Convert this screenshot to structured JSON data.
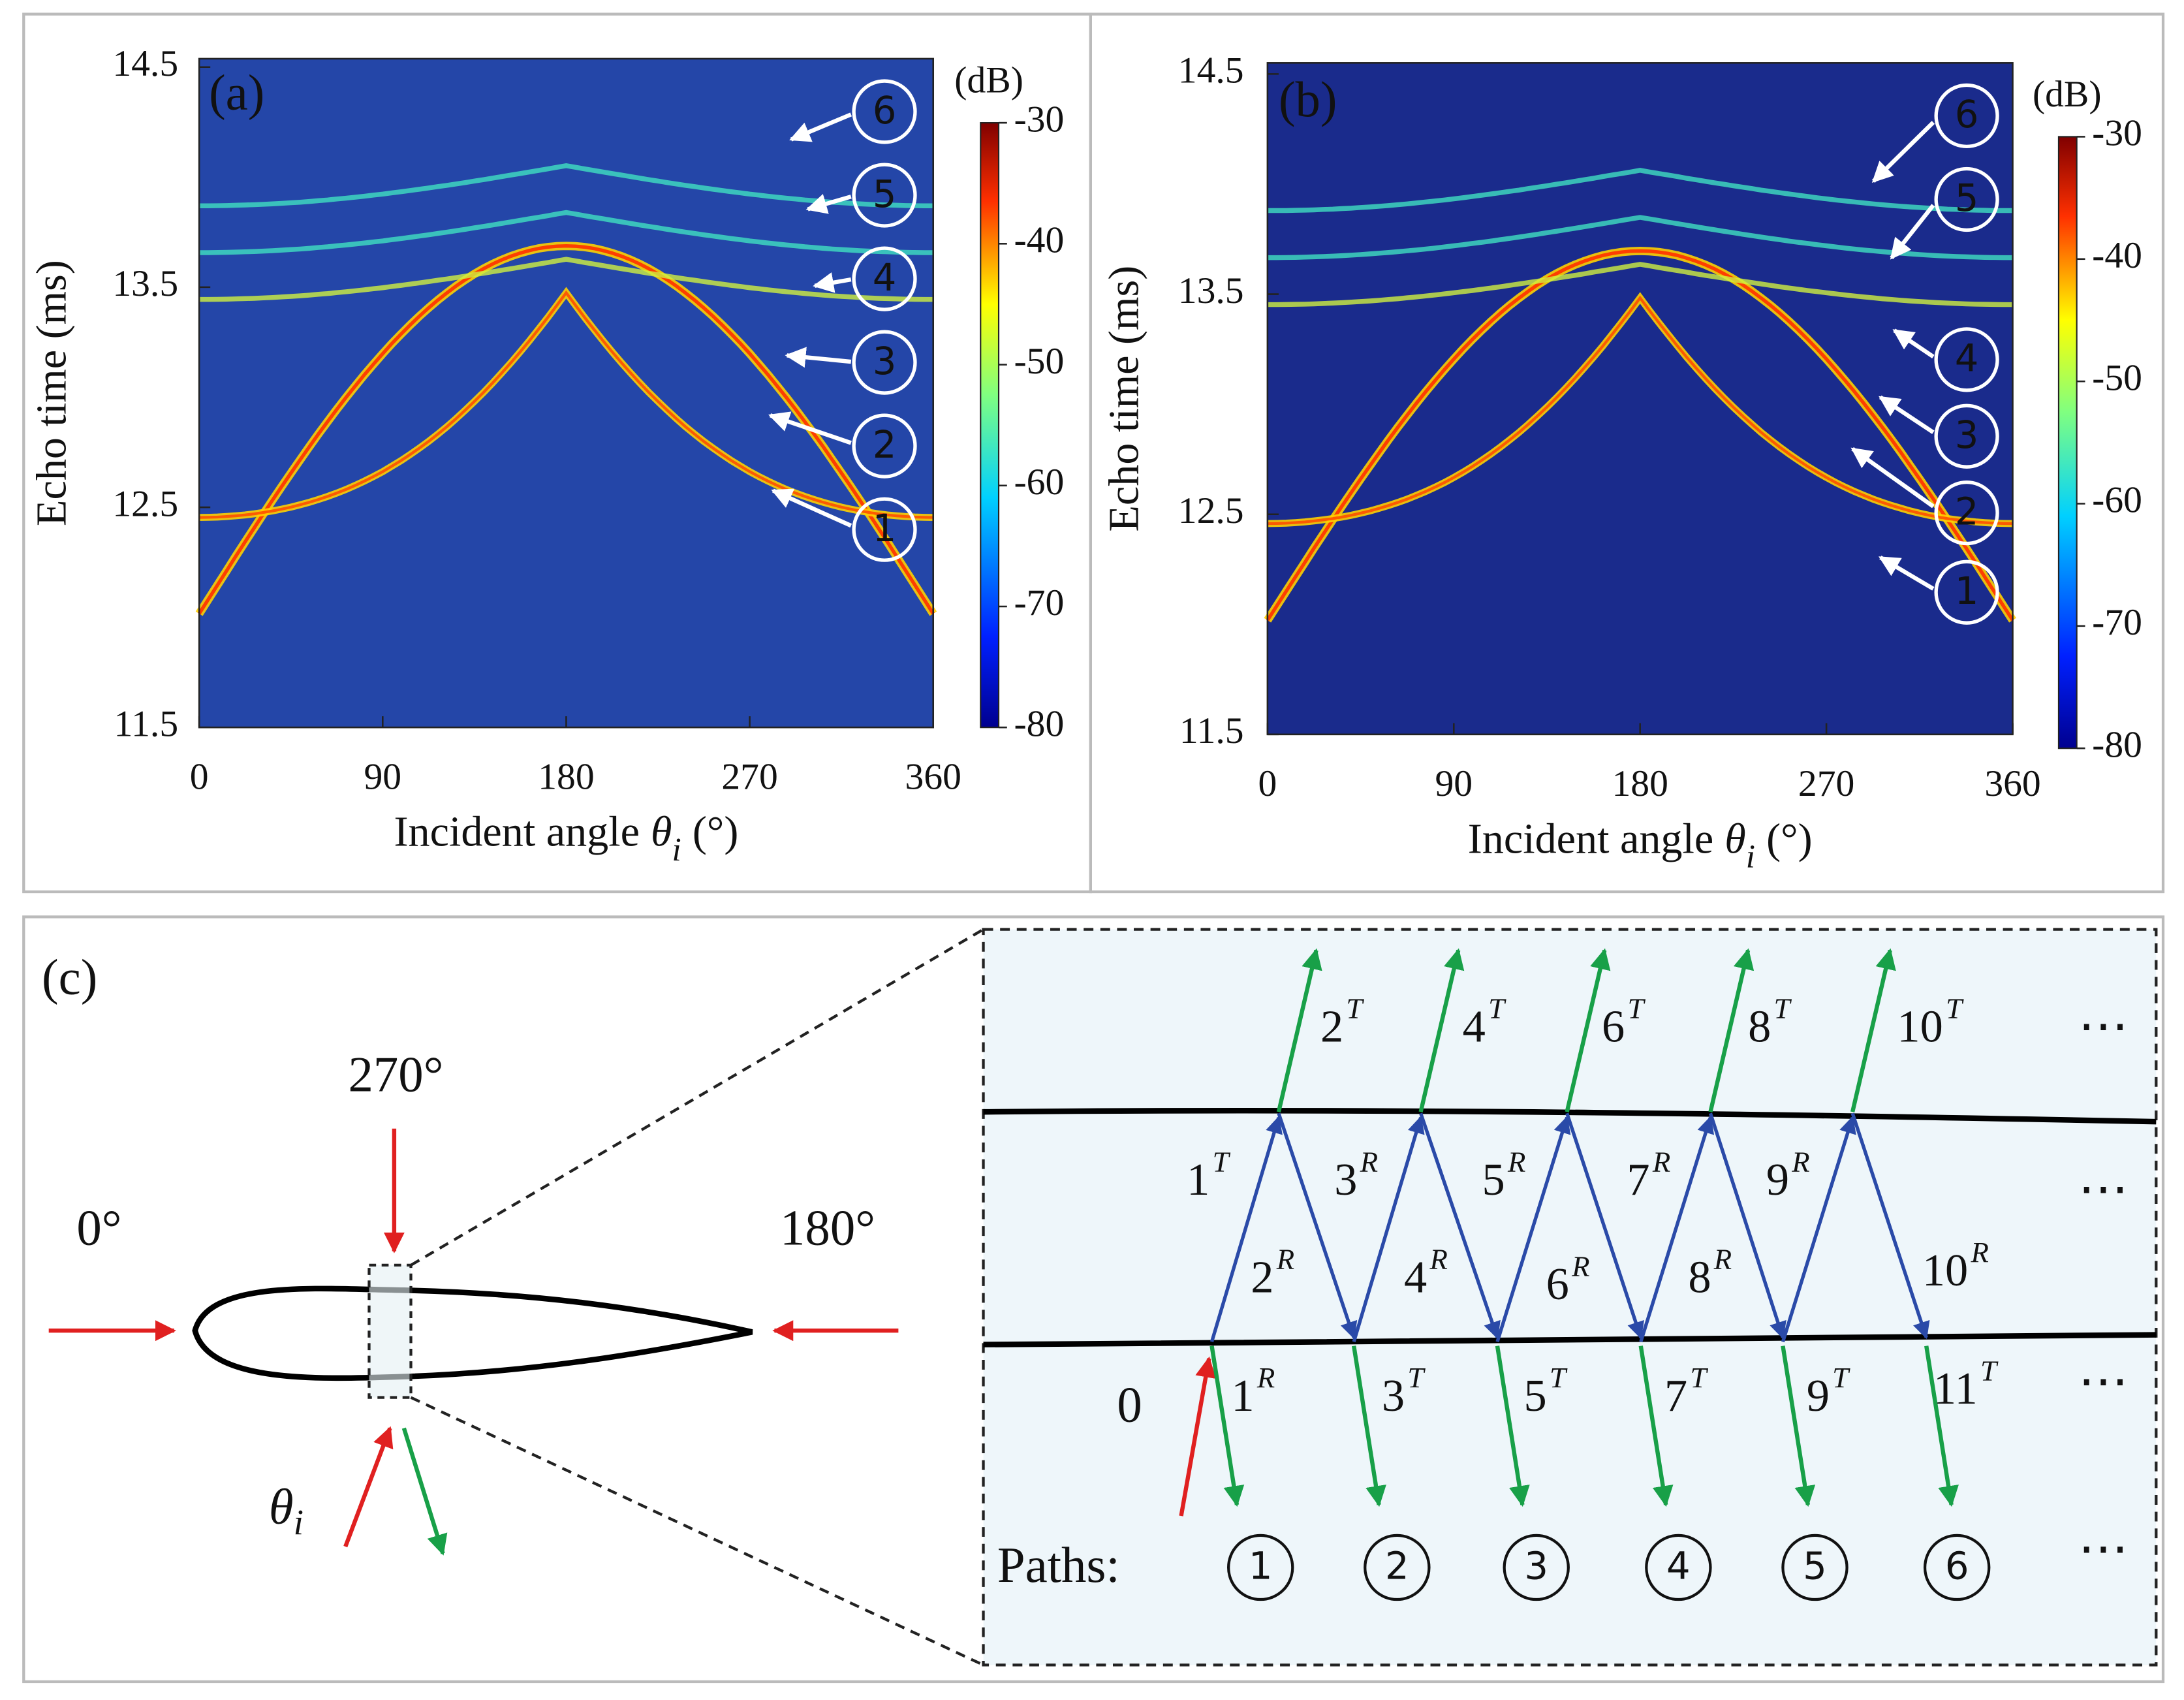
{
  "panels": [
    {
      "label": "(a)",
      "ylabel": "Echo time (ms)",
      "xlabel": {
        "text": "Incident angle",
        "symbol": "θ",
        "subscript": "i",
        "unit": "(°)"
      },
      "xticks": [
        0,
        90,
        180,
        270,
        360
      ],
      "yticks": [
        11.5,
        12.5,
        13.5,
        14.5
      ],
      "colorbar": {
        "unit": "(dB)",
        "ticks": [
          -30,
          -40,
          -50,
          -60,
          -70,
          -80
        ]
      },
      "paths": [
        "1",
        "2",
        "3",
        "4",
        "5",
        "6"
      ]
    },
    {
      "label": "(b)",
      "ylabel": "Echo time (ms)",
      "xlabel": {
        "text": "Incident angle",
        "symbol": "θ",
        "subscript": "i",
        "unit": "(°)"
      },
      "xticks": [
        0,
        90,
        180,
        270,
        360
      ],
      "yticks": [
        11.5,
        12.5,
        13.5,
        14.5
      ],
      "colorbar": {
        "unit": "(dB)",
        "ticks": [
          -30,
          -40,
          -50,
          -60,
          -70,
          -80
        ]
      },
      "paths": [
        "1",
        "2",
        "3",
        "4",
        "5",
        "6"
      ]
    }
  ],
  "diagram": {
    "label": "(c)",
    "directions": [
      "0°",
      "270°",
      "180°"
    ],
    "incident": {
      "symbol": "θ",
      "subscript": "i"
    },
    "origin": "0",
    "rays": [
      {
        "base": "2",
        "sup": "T"
      },
      {
        "base": "4",
        "sup": "T"
      },
      {
        "base": "6",
        "sup": "T"
      },
      {
        "base": "8",
        "sup": "T"
      },
      {
        "base": "10",
        "sup": "T"
      },
      {
        "base": "1",
        "sup": "T"
      },
      {
        "base": "3",
        "sup": "R"
      },
      {
        "base": "5",
        "sup": "R"
      },
      {
        "base": "7",
        "sup": "R"
      },
      {
        "base": "9",
        "sup": "R"
      },
      {
        "base": "2",
        "sup": "R"
      },
      {
        "base": "4",
        "sup": "R"
      },
      {
        "base": "6",
        "sup": "R"
      },
      {
        "base": "8",
        "sup": "R"
      },
      {
        "base": "10",
        "sup": "R"
      },
      {
        "base": "1",
        "sup": "R"
      },
      {
        "base": "3",
        "sup": "T"
      },
      {
        "base": "5",
        "sup": "T"
      },
      {
        "base": "7",
        "sup": "T"
      },
      {
        "base": "9",
        "sup": "T"
      },
      {
        "base": "11",
        "sup": "T"
      }
    ],
    "paths_label": "Paths:",
    "paths": [
      "1",
      "2",
      "3",
      "4",
      "5",
      "6"
    ],
    "ellipsis": "⋯"
  }
}
